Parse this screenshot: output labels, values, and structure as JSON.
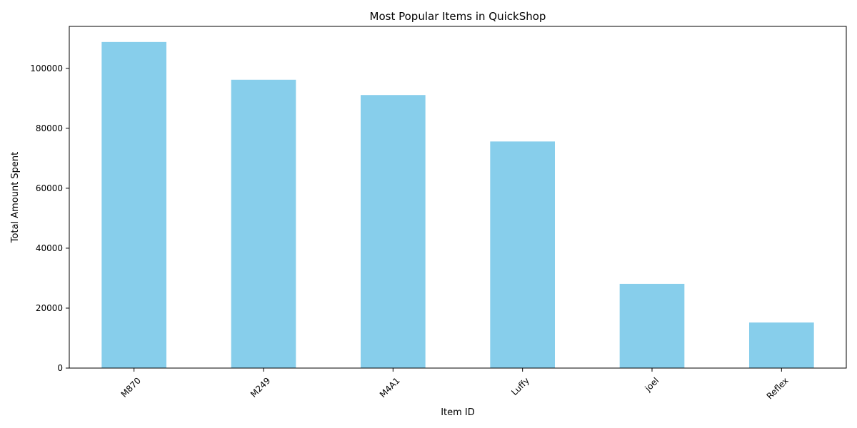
{
  "chart_data": {
    "type": "bar",
    "title": "Most Popular Items in QuickShop",
    "xlabel": "Item ID",
    "ylabel": "Total Amount Spent",
    "categories": [
      "M870",
      "M249",
      "M4A1",
      "Luffy",
      "joel",
      "Reflex"
    ],
    "values": [
      108800,
      96200,
      91100,
      75600,
      28100,
      15200
    ],
    "ylim": [
      0,
      114000
    ],
    "yticks": [
      0,
      20000,
      40000,
      60000,
      80000,
      100000
    ],
    "bar_color": "#87ceeb",
    "grid": false,
    "legend": "none"
  }
}
